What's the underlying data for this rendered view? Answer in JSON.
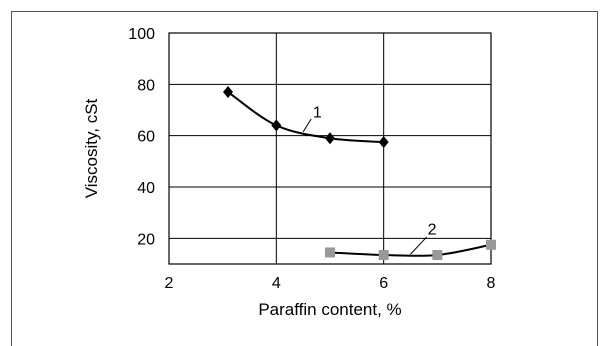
{
  "chart_data": {
    "type": "line",
    "title": "",
    "xlabel": "Paraffin content, %",
    "ylabel": "Viscosity, cSt",
    "xlim": [
      2,
      8
    ],
    "ylim": [
      10,
      100
    ],
    "xticks": [
      2,
      4,
      6,
      8
    ],
    "yticks": [
      20,
      40,
      60,
      80,
      100
    ],
    "grid": true,
    "legend": "none",
    "series": [
      {
        "name": "1",
        "color": "#000000",
        "marker": "diamond",
        "x": [
          3.1,
          4,
          5,
          6
        ],
        "y": [
          77,
          64,
          59,
          57.5
        ]
      },
      {
        "name": "2",
        "color": "#999999",
        "marker": "square",
        "x": [
          5,
          6,
          7,
          8
        ],
        "y": [
          14.5,
          13.5,
          13.5,
          17.5
        ]
      }
    ]
  }
}
